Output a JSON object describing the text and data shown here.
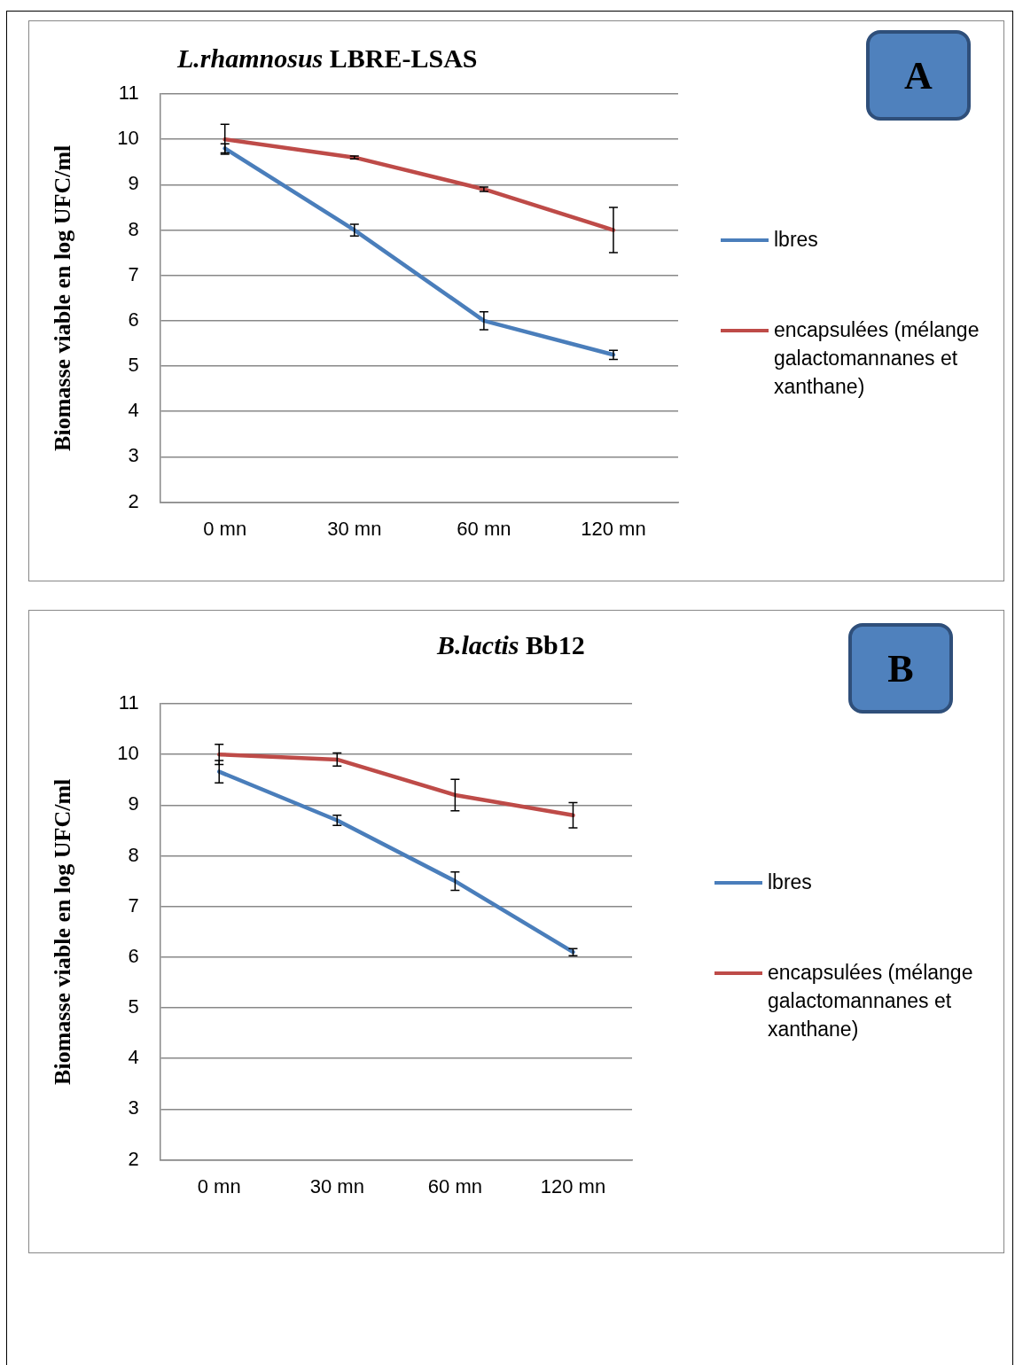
{
  "chart_data": [
    {
      "type": "line",
      "title": "L.rhamnosus LBRE-LSAS",
      "ylabel": "Biomasse viable en log UFC/ml",
      "categories": [
        "0 mn",
        "30 mn",
        "60 mn",
        "120 mn"
      ],
      "series": [
        {
          "name": "lbres",
          "color": "#4a7ebb",
          "values": [
            9.8,
            8.0,
            6.0,
            5.25
          ],
          "errors": [
            0.1,
            0.13,
            0.2,
            0.1
          ]
        },
        {
          "name": "encapsulées (mélange galactomannanes et xanthane)",
          "color": "#be4b48",
          "values": [
            10.0,
            9.6,
            8.9,
            8.0
          ],
          "errors": [
            0.33,
            0.03,
            0.05,
            0.5
          ]
        }
      ],
      "ylim": [
        2,
        11
      ],
      "yticks": [
        2,
        3,
        4,
        5,
        6,
        7,
        8,
        9,
        10,
        11
      ],
      "grid": "y",
      "legend": "right",
      "annotations": [
        "A"
      ]
    },
    {
      "type": "line",
      "title": "B.lactis Bb12",
      "ylabel": "Biomasse viable en log UFC/ml",
      "categories": [
        "0 mn",
        "30 mn",
        "60 mn",
        "120 mn"
      ],
      "series": [
        {
          "name": "lbres",
          "color": "#4a7ebb",
          "values": [
            9.66,
            8.7,
            7.5,
            6.1
          ],
          "errors": [
            0.22,
            0.1,
            0.18,
            0.07
          ]
        },
        {
          "name": "encapsulées (mélange galactomannanes et xanthane)",
          "color": "#be4b48",
          "values": [
            10.0,
            9.9,
            9.2,
            8.8
          ],
          "errors": [
            0.2,
            0.13,
            0.31,
            0.25
          ]
        }
      ],
      "ylim": [
        2,
        11
      ],
      "yticks": [
        2,
        3,
        4,
        5,
        6,
        7,
        8,
        9,
        10,
        11
      ],
      "grid": "y",
      "legend": "right",
      "annotations": [
        "B"
      ]
    }
  ]
}
